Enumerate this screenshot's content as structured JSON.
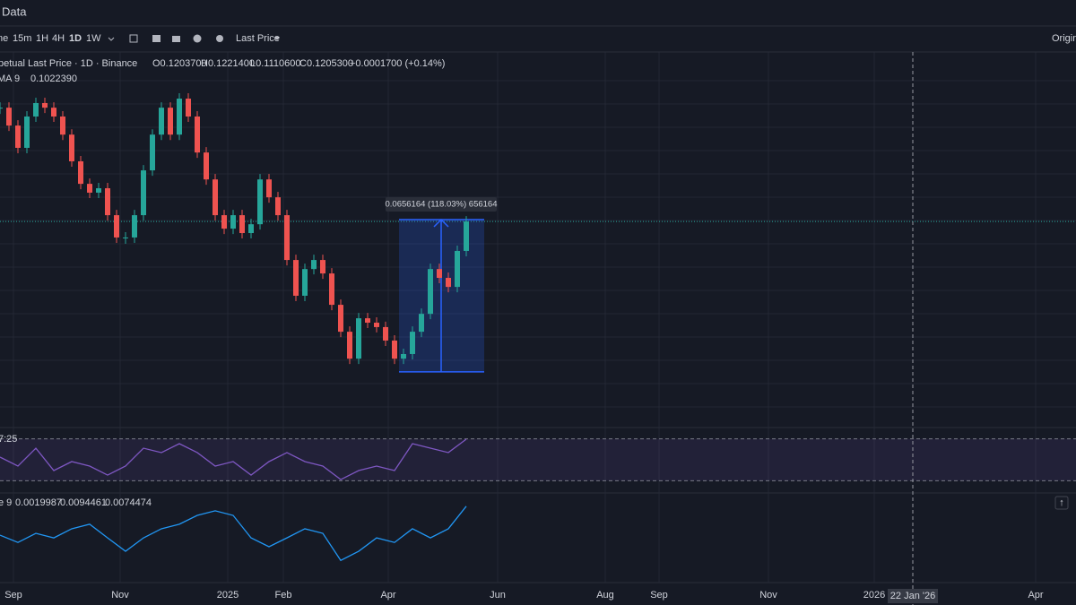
{
  "header": {
    "title": "Data"
  },
  "toolbar": {
    "items": [
      "ne",
      "15m",
      "1H",
      "4H",
      "1D",
      "1W",
      "Last Price"
    ],
    "right": "Origina"
  },
  "legend": {
    "symbol": "petual Last Price · 1D · Binance",
    "open": "O0.1203700",
    "high": "H0.1221400",
    "low": "L0.1110600",
    "close": "C0.1205300",
    "change": "+0.0001700 (+0.14%)",
    "ma_name": "MA 9",
    "ma_value": "0.1022390"
  },
  "chart": {
    "ylim": [
      0.0383,
      0.2043
    ],
    "close": [
      0.1695,
      0.1618,
      0.1522,
      0.1657,
      0.1715,
      0.1695,
      0.1657,
      0.1579,
      0.1464,
      0.1367,
      0.1329,
      0.1348,
      0.1232,
      0.1136,
      0.1136,
      0.1232,
      0.1425,
      0.1579,
      0.1695,
      0.1579,
      0.1734,
      0.1657,
      0.1502,
      0.1386,
      0.1232,
      0.1174,
      0.1232,
      0.1155,
      0.1193,
      0.1386,
      0.1309,
      0.1232,
      0.1039,
      0.0885,
      0.1,
      0.1039,
      0.0981,
      0.0846,
      0.073,
      0.0614,
      0.0788,
      0.0769,
      0.075,
      0.0692,
      0.0614,
      0.0634,
      0.073,
      0.0807,
      0.1,
      0.0962,
      0.0923,
      0.1078,
      0.1205
    ],
    "last_price": 0.1205,
    "measure": {
      "label": "0.0656164 (118.03%) 656164",
      "from": 0.0557,
      "to": 0.1213
    }
  },
  "rsi": {
    "label": "7:25",
    "ylim": [
      20,
      80
    ],
    "band": [
      30,
      70
    ],
    "values": [
      52.6,
      44,
      61.1,
      39.7,
      48.3,
      44,
      35.4,
      44,
      61.1,
      56.9,
      65.4,
      56.9,
      44,
      48.3,
      35.4,
      48.3,
      56.9,
      48.3,
      44,
      31.1,
      39.7,
      44,
      39.7,
      65.4,
      61.1,
      56.9,
      69.7
    ]
  },
  "macd": {
    "label": "e 9",
    "hist_label": "0.0019987",
    "macd_label": "0.0094461",
    "signal_label": "0.0074474",
    "ylim": [
      -0.0162,
      0.0118
    ],
    "values": [
      -0.0006,
      -0.003,
      0,
      -0.0015,
      0.0015,
      0.003,
      -0.0015,
      -0.0059,
      -0.0015,
      0.0015,
      0.003,
      0.0059,
      0.0074,
      0.0059,
      -0.0015,
      -0.0044,
      -0.0015,
      0.0015,
      0,
      -0.0089,
      -0.0059,
      -0.0015,
      -0.003,
      0.0015,
      -0.0015,
      0.0015,
      0.0089
    ]
  },
  "x_axis": {
    "labels": [
      "Sep",
      "Nov",
      "2025",
      "Feb",
      "Apr",
      "Jun",
      "Aug",
      "Sep",
      "Nov",
      "2026",
      "Apr"
    ],
    "crosshair": "22 Jan '26"
  }
}
